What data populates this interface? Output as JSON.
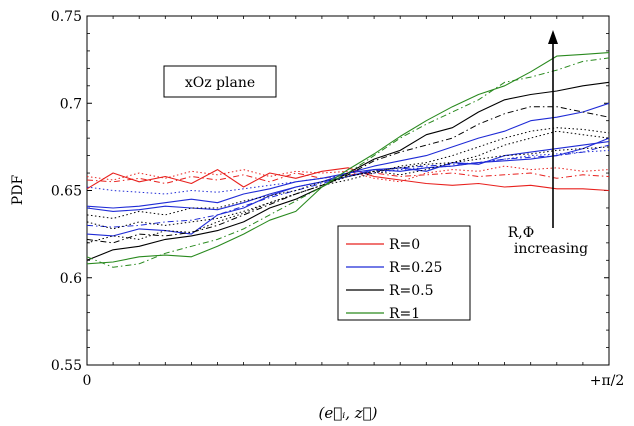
{
  "chart_data": {
    "type": "line",
    "ylabel": "PDF",
    "xlabel": "(e⃗ᵢ, z⃗)",
    "x_tick_labels": [
      "0",
      "+π/2"
    ],
    "xlim": [
      0,
      1.5708
    ],
    "ylim": [
      0.55,
      0.75
    ],
    "yticks": [
      0.55,
      0.6,
      0.65,
      0.7,
      0.75
    ],
    "y_tick_labels": [
      "0.55",
      "0.6",
      "0.65",
      "0.7",
      "0.75"
    ],
    "grid": false,
    "legend_position": "lower-right",
    "annotations": {
      "plane_label": "xOz plane",
      "arrow_label_line1": "R,Φ",
      "arrow_label_line2": "increasing"
    },
    "x": [
      0.0,
      0.0785,
      0.1571,
      0.2356,
      0.3142,
      0.3927,
      0.4712,
      0.5498,
      0.6283,
      0.7069,
      0.7854,
      0.8639,
      0.9425,
      1.021,
      1.0996,
      1.1781,
      1.2566,
      1.3352,
      1.4137,
      1.4923,
      1.5708
    ],
    "series": [
      {
        "name": "R=0",
        "color": "#e8211e",
        "dash": "solid",
        "legend": true,
        "values": [
          0.651,
          0.66,
          0.655,
          0.658,
          0.654,
          0.662,
          0.652,
          0.66,
          0.657,
          0.661,
          0.663,
          0.658,
          0.656,
          0.654,
          0.653,
          0.654,
          0.652,
          0.653,
          0.651,
          0.651,
          0.65
        ]
      },
      {
        "name": "",
        "color": "#e8211e",
        "dash": "6,3,1.5,3",
        "values": [
          0.656,
          0.655,
          0.657,
          0.654,
          0.658,
          0.656,
          0.659,
          0.655,
          0.66,
          0.657,
          0.659,
          0.66,
          0.658,
          0.659,
          0.66,
          0.658,
          0.659,
          0.66,
          0.657,
          0.659,
          0.658
        ]
      },
      {
        "name": "",
        "color": "#e8211e",
        "dash": "1.5,2.5",
        "values": [
          0.658,
          0.656,
          0.66,
          0.657,
          0.661,
          0.659,
          0.662,
          0.658,
          0.661,
          0.66,
          0.661,
          0.657,
          0.655,
          0.66,
          0.662,
          0.661,
          0.664,
          0.662,
          0.663,
          0.661,
          0.662
        ]
      },
      {
        "name": "R=0.25",
        "color": "#1f2bd6",
        "dash": "solid",
        "legend": true,
        "values": [
          0.641,
          0.64,
          0.641,
          0.643,
          0.645,
          0.643,
          0.648,
          0.651,
          0.655,
          0.657,
          0.66,
          0.664,
          0.667,
          0.67,
          0.675,
          0.68,
          0.684,
          0.69,
          0.692,
          0.695,
          0.7
        ]
      },
      {
        "name": "",
        "color": "#1f2bd6",
        "dash": "solid",
        "values": [
          0.625,
          0.624,
          0.628,
          0.627,
          0.625,
          0.636,
          0.64,
          0.647,
          0.652,
          0.655,
          0.66,
          0.662,
          0.663,
          0.661,
          0.666,
          0.665,
          0.67,
          0.672,
          0.674,
          0.676,
          0.678
        ]
      },
      {
        "name": "",
        "color": "#1f2bd6",
        "dash": "solid",
        "values": [
          0.64,
          0.638,
          0.639,
          0.641,
          0.64,
          0.639,
          0.643,
          0.648,
          0.652,
          0.655,
          0.658,
          0.662,
          0.661,
          0.663,
          0.664,
          0.666,
          0.667,
          0.668,
          0.67,
          0.674,
          0.68
        ]
      },
      {
        "name": "",
        "color": "#1f2bd6",
        "dash": "6,3,1.5,3",
        "values": [
          0.63,
          0.629,
          0.63,
          0.632,
          0.633,
          0.636,
          0.641,
          0.646,
          0.65,
          0.654,
          0.658,
          0.661,
          0.663,
          0.664,
          0.665,
          0.666,
          0.668,
          0.669,
          0.67,
          0.672,
          0.676
        ]
      },
      {
        "name": "",
        "color": "#1f2bd6",
        "dash": "1.5,2.5",
        "values": [
          0.652,
          0.65,
          0.649,
          0.648,
          0.65,
          0.649,
          0.651,
          0.653,
          0.655,
          0.657,
          0.659,
          0.66,
          0.662,
          0.663,
          0.664,
          0.666,
          0.668,
          0.67,
          0.671,
          0.672,
          0.673
        ]
      },
      {
        "name": "R=0.5",
        "color": "#000000",
        "dash": "solid",
        "legend": true,
        "values": [
          0.61,
          0.616,
          0.618,
          0.622,
          0.624,
          0.627,
          0.632,
          0.64,
          0.645,
          0.652,
          0.66,
          0.668,
          0.673,
          0.682,
          0.686,
          0.695,
          0.702,
          0.705,
          0.707,
          0.71,
          0.712
        ]
      },
      {
        "name": "",
        "color": "#000000",
        "dash": "6,3,1.5,3",
        "values": [
          0.622,
          0.62,
          0.625,
          0.624,
          0.626,
          0.63,
          0.636,
          0.642,
          0.648,
          0.653,
          0.659,
          0.667,
          0.672,
          0.676,
          0.68,
          0.688,
          0.694,
          0.698,
          0.698,
          0.695,
          0.692
        ]
      },
      {
        "name": "",
        "color": "#000000",
        "dash": "1.5,2.5",
        "values": [
          0.632,
          0.628,
          0.632,
          0.63,
          0.632,
          0.634,
          0.638,
          0.643,
          0.648,
          0.653,
          0.658,
          0.661,
          0.659,
          0.662,
          0.666,
          0.67,
          0.676,
          0.68,
          0.684,
          0.682,
          0.68
        ]
      },
      {
        "name": "",
        "color": "#000000",
        "dash": "1.5,2.5",
        "values": [
          0.62,
          0.624,
          0.622,
          0.627,
          0.626,
          0.632,
          0.637,
          0.643,
          0.648,
          0.653,
          0.656,
          0.66,
          0.664,
          0.666,
          0.67,
          0.675,
          0.68,
          0.684,
          0.686,
          0.685,
          0.683
        ]
      },
      {
        "name": "",
        "color": "#000000",
        "dash": "1.5,2.5",
        "values": [
          0.636,
          0.634,
          0.638,
          0.636,
          0.64,
          0.64,
          0.644,
          0.647,
          0.65,
          0.655,
          0.658,
          0.661,
          0.663,
          0.665,
          0.666,
          0.668,
          0.67,
          0.671,
          0.673,
          0.674,
          0.675
        ]
      },
      {
        "name": "R=1",
        "color": "#2a8a1f",
        "dash": "solid",
        "legend": true,
        "values": [
          0.608,
          0.609,
          0.612,
          0.613,
          0.612,
          0.618,
          0.625,
          0.633,
          0.638,
          0.652,
          0.662,
          0.671,
          0.681,
          0.69,
          0.698,
          0.705,
          0.71,
          0.718,
          0.727,
          0.728,
          0.729
        ]
      },
      {
        "name": "",
        "color": "#2a8a1f",
        "dash": "6,3,1.5,3",
        "values": [
          0.612,
          0.606,
          0.608,
          0.614,
          0.618,
          0.622,
          0.628,
          0.636,
          0.644,
          0.652,
          0.66,
          0.67,
          0.68,
          0.688,
          0.695,
          0.702,
          0.712,
          0.715,
          0.719,
          0.724,
          0.726
        ]
      }
    ]
  }
}
